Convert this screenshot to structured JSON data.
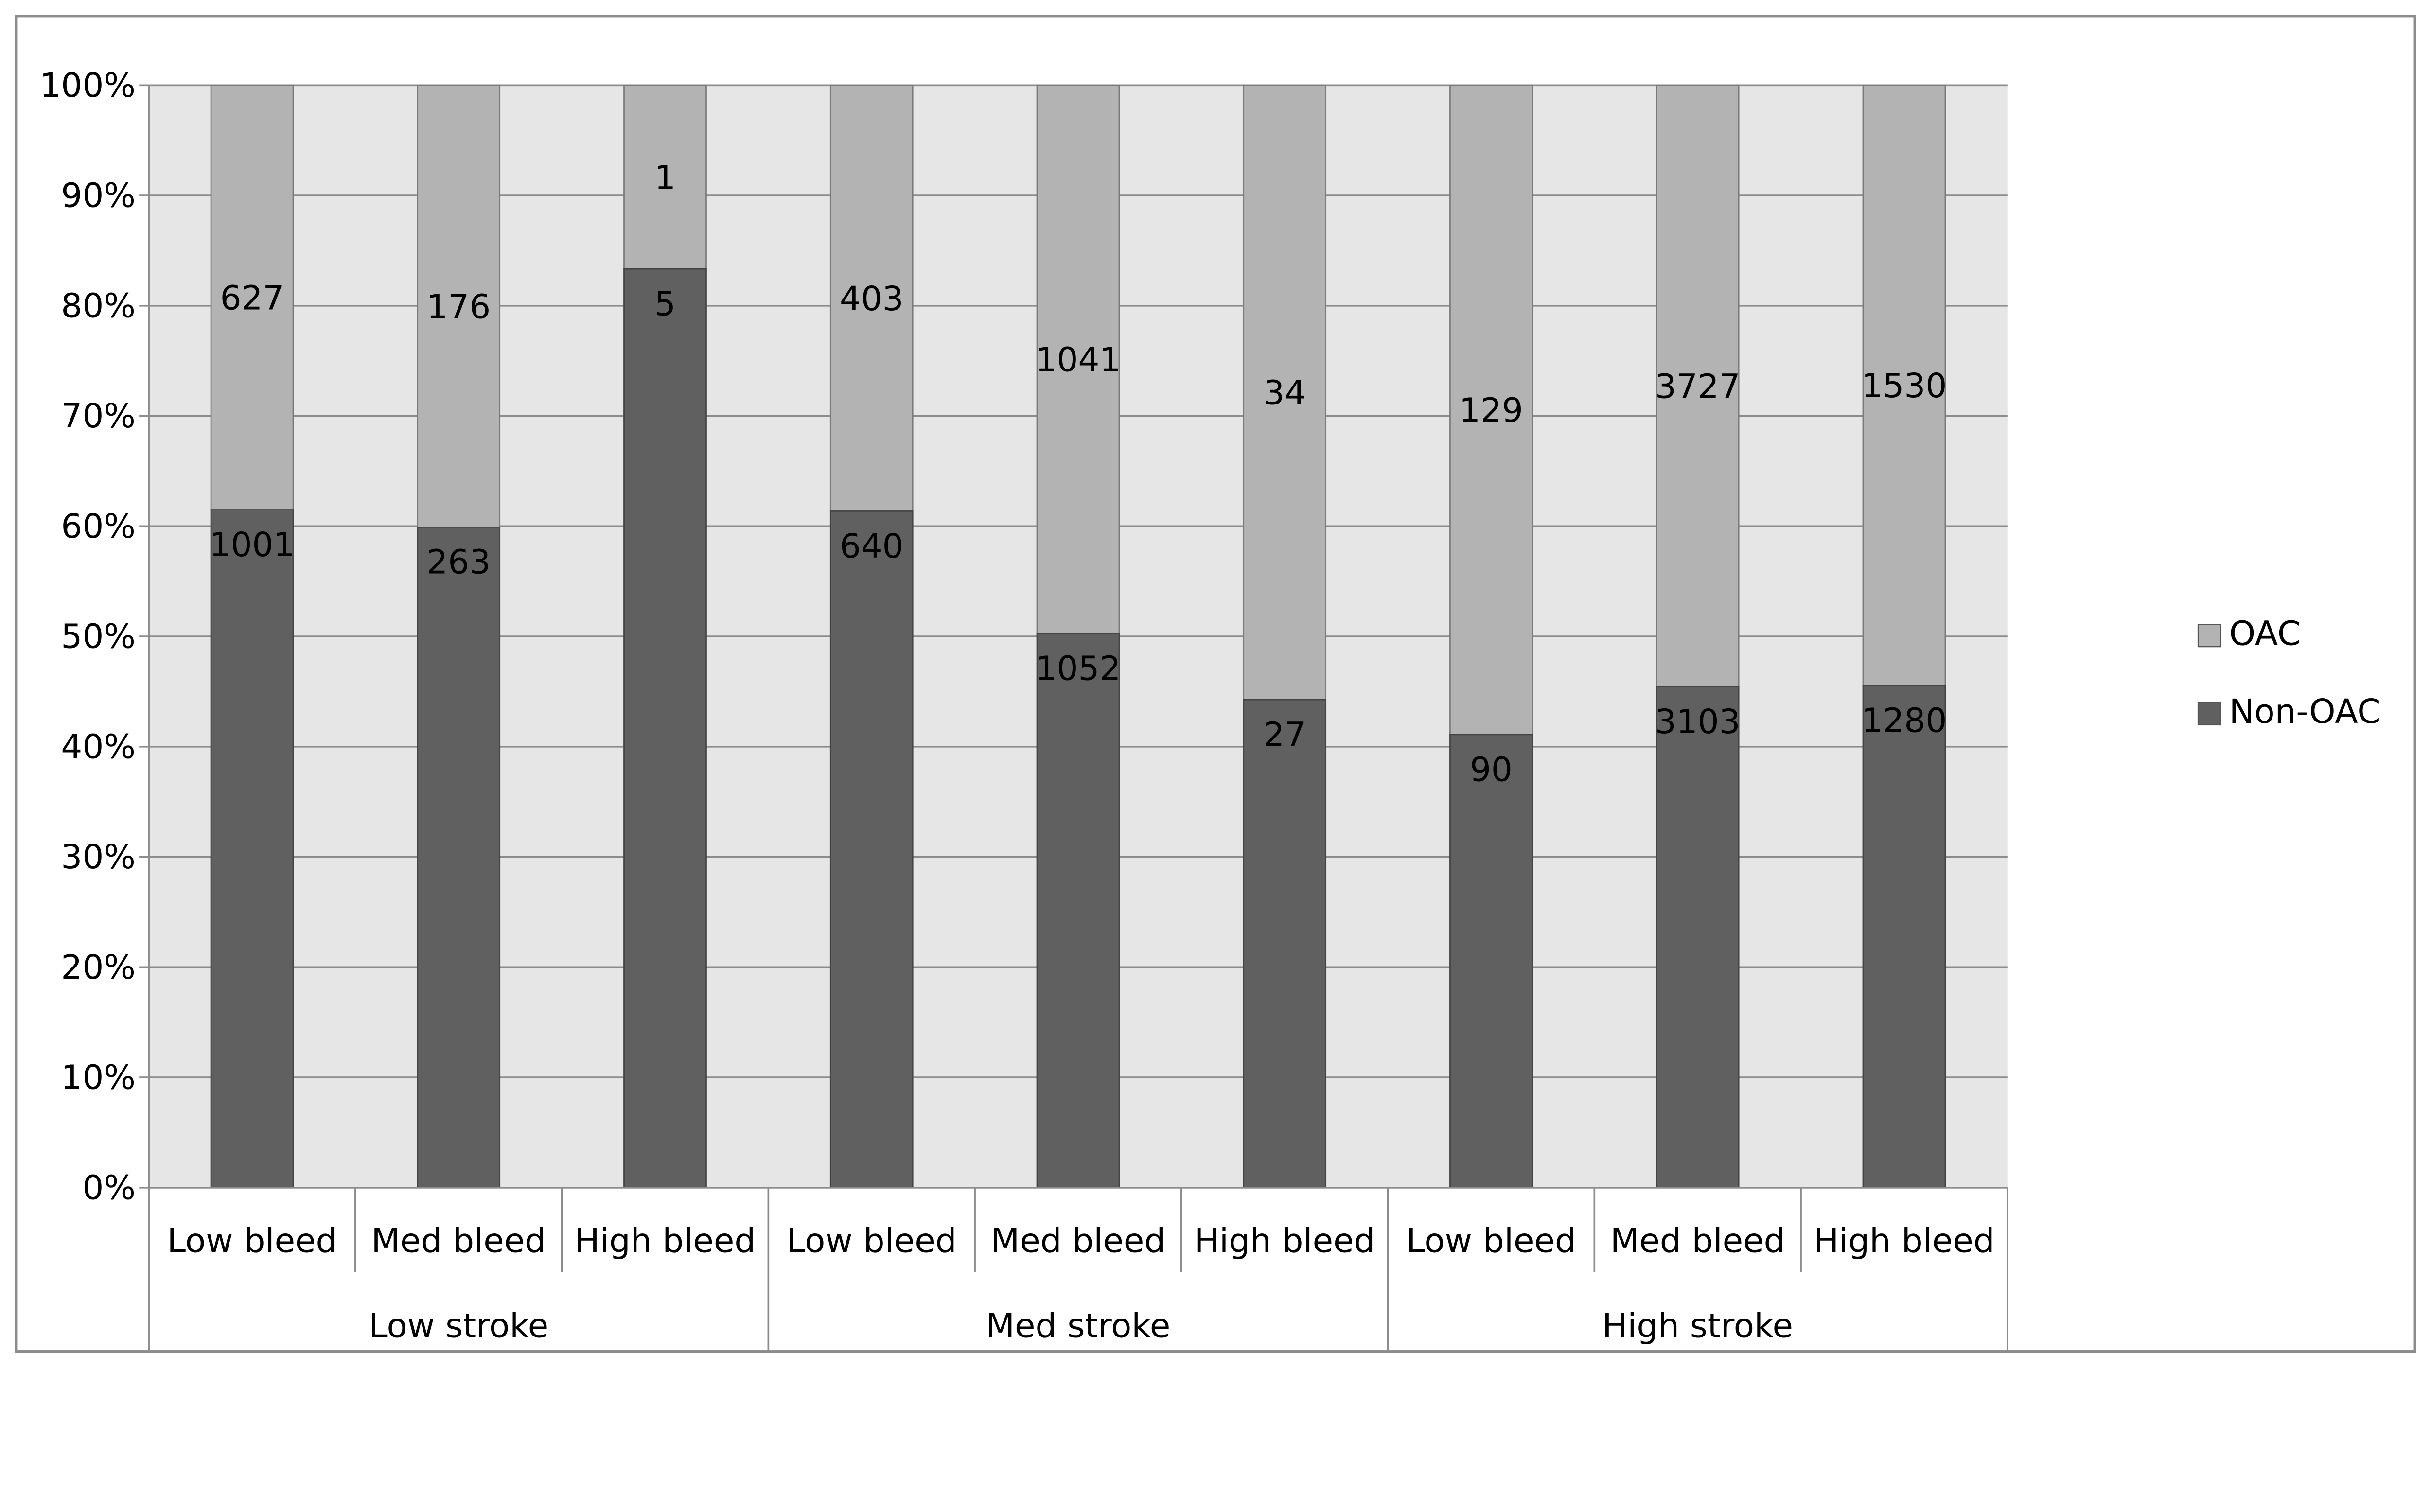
{
  "chart_data": {
    "type": "bar",
    "stacked": "percent",
    "title": "",
    "xlabel": "",
    "ylabel": "",
    "ylim": [
      0,
      100
    ],
    "yticks": [
      "0%",
      "10%",
      "20%",
      "30%",
      "40%",
      "50%",
      "60%",
      "70%",
      "80%",
      "90%",
      "100%"
    ],
    "grid": true,
    "legend_position": "right",
    "groups": [
      {
        "label": "Low stroke",
        "categories": [
          "Low bleed",
          "Med bleed",
          "High bleed"
        ]
      },
      {
        "label": "Med stroke",
        "categories": [
          "Low bleed",
          "Med bleed",
          "High bleed"
        ]
      },
      {
        "label": "High stroke",
        "categories": [
          "Low bleed",
          "Med bleed",
          "High bleed"
        ]
      }
    ],
    "series": [
      {
        "name": "Non-OAC",
        "color": "#606060",
        "values": [
          1001,
          263,
          5,
          640,
          1052,
          27,
          90,
          3103,
          1280
        ]
      },
      {
        "name": "OAC",
        "color": "#b3b3b3",
        "values": [
          627,
          176,
          1,
          403,
          1041,
          34,
          129,
          3727,
          1530
        ]
      }
    ],
    "colors": {
      "plot_background": "#e6e6e6",
      "gridline": "#8c8c8c"
    }
  }
}
